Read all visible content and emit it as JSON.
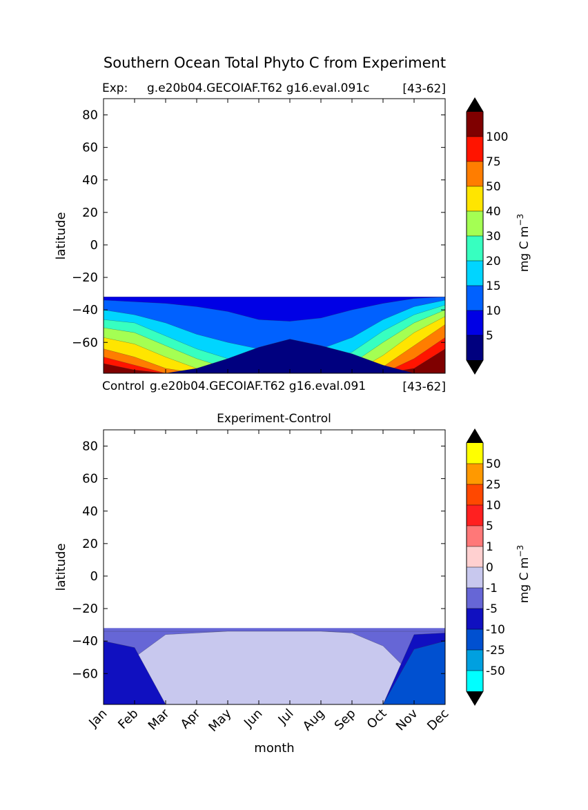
{
  "figure": {
    "title": "Southern Ocean Total Phyto C from Experiment",
    "exp_label": "Exp:",
    "exp_case": "g.e20b04.GECOIAF.T62 g16.eval.091c",
    "exp_years": "[43-62]",
    "control_label": "Control",
    "control_case": "g.e20b04.GECOIAF.T62 g16.eval.091",
    "control_years": "[43-62]"
  },
  "chart_data": [
    {
      "type": "heatmap",
      "title": "",
      "xlabel": "",
      "ylabel": "latitude",
      "x_categories": [
        "Jan",
        "Feb",
        "Mar",
        "Apr",
        "May",
        "Jun",
        "Jul",
        "Aug",
        "Sep",
        "Oct",
        "Nov",
        "Dec"
      ],
      "xlim": [
        0,
        11
      ],
      "ylim": [
        -79,
        90
      ],
      "yticks": [
        80,
        60,
        40,
        20,
        0,
        -20,
        -40,
        -60
      ],
      "data_lat_range": [
        -79,
        -32
      ],
      "colorbar": {
        "label": "mg C m",
        "label_exponent": "−3",
        "levels": [
          5,
          10,
          15,
          20,
          30,
          40,
          50,
          75,
          100
        ],
        "tick_labels": [
          "5",
          "10",
          "15",
          "20",
          "30",
          "40",
          "50",
          "75",
          "100"
        ],
        "colors": [
          "#00007f",
          "#0000e5",
          "#0061ff",
          "#00d5ff",
          "#37ffc0",
          "#a4ff53",
          "#ffe500",
          "#ff7d00",
          "#ff1400",
          "#7f0000"
        ],
        "extend_low_color": "#000000",
        "extend_high_color": "#000000"
      },
      "fields": [
        {
          "level": 1,
          "lat_top": [
            -32,
            -32,
            -32,
            -32,
            -32,
            -32,
            -32,
            -32,
            -32,
            -32,
            -32,
            -32
          ]
        },
        {
          "level": 2,
          "lat_top": [
            -34,
            -35,
            -36,
            -38,
            -41,
            -46,
            -47,
            -45,
            -40,
            -36,
            -33,
            -32
          ]
        },
        {
          "level": 3,
          "lat_top": [
            -40,
            -43,
            -48,
            -55,
            -60,
            -64,
            -65,
            -64,
            -57,
            -46,
            -38,
            -34
          ]
        },
        {
          "level": 4,
          "lat_top": [
            -46,
            -48,
            -56,
            -64,
            -70,
            -73,
            -74,
            -73,
            -66,
            -53,
            -43,
            -37
          ]
        },
        {
          "level": 5,
          "lat_top": [
            -51,
            -54,
            -62,
            -70,
            -76,
            -79,
            -79,
            -79,
            -73,
            -60,
            -48,
            -40
          ]
        },
        {
          "level": 6,
          "lat_top": [
            -57,
            -61,
            -69,
            -76,
            -79,
            -79,
            -79,
            -79,
            -79,
            -68,
            -54,
            -44
          ]
        },
        {
          "level": 7,
          "lat_top": [
            -64,
            -69,
            -76,
            -79,
            -79,
            -79,
            -79,
            -79,
            -79,
            -75,
            -62,
            -49
          ]
        },
        {
          "level": 8,
          "lat_top": [
            -69,
            -74,
            -79,
            -79,
            -79,
            -79,
            -79,
            -79,
            -79,
            -79,
            -70,
            -57
          ]
        },
        {
          "level": 9,
          "lat_top": [
            -73,
            -77,
            -79,
            -79,
            -79,
            -79,
            -79,
            -79,
            -79,
            -79,
            -76,
            -64
          ]
        },
        {
          "level": 0,
          "lat_top": [
            -79,
            -79,
            -79,
            -76,
            -70,
            -63,
            -58,
            -62,
            -67,
            -74,
            -79,
            -79
          ]
        }
      ]
    },
    {
      "type": "heatmap",
      "title": "Experiment-Control",
      "xlabel": "month",
      "ylabel": "latitude",
      "x_categories": [
        "Jan",
        "Feb",
        "Mar",
        "Apr",
        "May",
        "Jun",
        "Jul",
        "Aug",
        "Sep",
        "Oct",
        "Nov",
        "Dec"
      ],
      "xlim": [
        0,
        11
      ],
      "ylim": [
        -79,
        90
      ],
      "yticks": [
        80,
        60,
        40,
        20,
        0,
        -20,
        -40,
        -60
      ],
      "data_lat_range": [
        -79,
        -32
      ],
      "colorbar": {
        "label": "mg C m",
        "label_exponent": "−3",
        "levels": [
          -50,
          -25,
          -10,
          -5,
          -1,
          0,
          1,
          5,
          10,
          25,
          50
        ],
        "tick_labels": [
          "-50",
          "-25",
          "-10",
          "-5",
          "-1",
          "0",
          "1",
          "5",
          "10",
          "25",
          "50"
        ],
        "colors": [
          "#00ffff",
          "#00a0e0",
          "#0050d0",
          "#1010c0",
          "#6666d6",
          "#c8c8ee",
          "#ffd0d0",
          "#ff7878",
          "#ff2020",
          "#ff4800",
          "#ff9900",
          "#ffff00"
        ],
        "extend_low_color": "#000000",
        "extend_high_color": "#000000"
      },
      "fields": [
        {
          "level": 4,
          "lat_top": [
            -34,
            -34,
            -34,
            -34,
            -34,
            -34,
            -34,
            -34,
            -34,
            -34,
            -34,
            -34
          ]
        },
        {
          "level": 5,
          "lat_top": [
            -79,
            -50,
            -36,
            -35,
            -34,
            -34,
            -34,
            -34,
            -35,
            -43,
            -62,
            -79
          ]
        },
        {
          "level": 3,
          "lat_top": [
            -40,
            -44,
            -79,
            -79,
            -79,
            -79,
            -79,
            -79,
            -79,
            -79,
            -36,
            -35
          ]
        },
        {
          "level": 2,
          "lat_top": [
            -79,
            -79,
            -79,
            -79,
            -79,
            -79,
            -79,
            -79,
            -79,
            -79,
            -45,
            -40
          ]
        }
      ]
    }
  ]
}
